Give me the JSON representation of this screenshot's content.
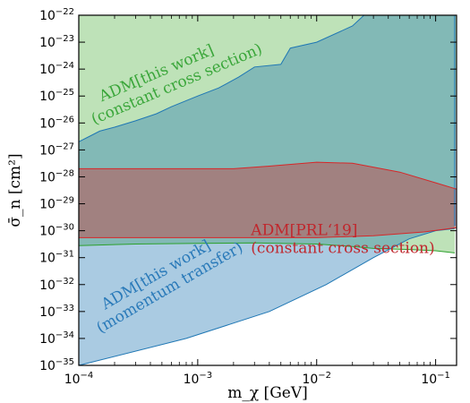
{
  "chart_data": {
    "type": "area",
    "xscale": "log",
    "yscale": "log",
    "xlim": [
      0.0001,
      0.15
    ],
    "ylim": [
      1e-35,
      1e-22
    ],
    "xlabel": "m_χ [GeV]",
    "ylabel": "σ̄_n [cm²]",
    "xticks": [
      {
        "value": 0.0001,
        "base": "10",
        "exp": "−4"
      },
      {
        "value": 0.001,
        "base": "10",
        "exp": "−3"
      },
      {
        "value": 0.01,
        "base": "10",
        "exp": "−2"
      },
      {
        "value": 0.1,
        "base": "10",
        "exp": "−1"
      }
    ],
    "yticks": [
      {
        "value": 1e-35,
        "base": "10",
        "exp": "−35"
      },
      {
        "value": 1e-34,
        "base": "10",
        "exp": "−34"
      },
      {
        "value": 1e-33,
        "base": "10",
        "exp": "−33"
      },
      {
        "value": 1e-32,
        "base": "10",
        "exp": "−32"
      },
      {
        "value": 1e-31,
        "base": "10",
        "exp": "−31"
      },
      {
        "value": 1e-30,
        "base": "10",
        "exp": "−30"
      },
      {
        "value": 1e-29,
        "base": "10",
        "exp": "−29"
      },
      {
        "value": 1e-28,
        "base": "10",
        "exp": "−28"
      },
      {
        "value": 1e-27,
        "base": "10",
        "exp": "−27"
      },
      {
        "value": 1e-26,
        "base": "10",
        "exp": "−26"
      },
      {
        "value": 1e-25,
        "base": "10",
        "exp": "−25"
      },
      {
        "value": 1e-24,
        "base": "10",
        "exp": "−24"
      },
      {
        "value": 1e-23,
        "base": "10",
        "exp": "−23"
      },
      {
        "value": 1e-22,
        "base": "10",
        "exp": "−22"
      }
    ],
    "series": [
      {
        "key": "green",
        "color": "#2ca02c",
        "fill": "#a8d8a0",
        "fill_opacity": 0.75,
        "upper": [
          [
            0.0001,
            1e-22
          ],
          [
            0.15,
            1e-22
          ]
        ],
        "lower": [
          [
            0.0001,
            2.8e-31
          ],
          [
            0.0003,
            3.2e-31
          ],
          [
            0.001,
            3.4e-31
          ],
          [
            0.003,
            3.5e-31
          ],
          [
            0.01,
            3.2e-31
          ],
          [
            0.02,
            2.6e-31
          ],
          [
            0.03,
            2.2e-31
          ],
          [
            0.06,
            2e-31
          ],
          [
            0.1,
            1.8e-31
          ],
          [
            0.145,
            1.5e-31
          ]
        ]
      },
      {
        "key": "blue",
        "color": "#1f77b4",
        "fill": "#1f77b4",
        "fill_opacity": 0.38,
        "upper": [
          [
            0.0001,
            2e-27
          ],
          [
            0.00012,
            3e-27
          ],
          [
            0.00015,
            5e-27
          ],
          [
            0.0002,
            7e-27
          ],
          [
            0.0003,
            1.2e-26
          ],
          [
            0.00045,
            2.2e-26
          ],
          [
            0.0006,
            4e-26
          ],
          [
            0.001,
            1e-25
          ],
          [
            0.0015,
            2e-25
          ],
          [
            0.0022,
            5e-25
          ],
          [
            0.003,
            1.2e-24
          ],
          [
            0.005,
            1.5e-24
          ],
          [
            0.006,
            6e-24
          ],
          [
            0.01,
            1e-23
          ],
          [
            0.02,
            4e-23
          ],
          [
            0.025,
            1e-22
          ],
          [
            0.145,
            1e-22
          ]
        ],
        "lower": [
          [
            0.0001,
            1e-35
          ],
          [
            0.0008,
            1e-34
          ],
          [
            0.004,
            1e-33
          ],
          [
            0.012,
            1e-32
          ],
          [
            0.03,
            1e-31
          ],
          [
            0.06,
            5e-31
          ],
          [
            0.1,
            1e-30
          ],
          [
            0.145,
            1.2e-30
          ]
        ],
        "right_edge": [
          [
            0.145,
            1e-22
          ],
          [
            0.145,
            1.5e-30
          ]
        ]
      },
      {
        "key": "red",
        "color": "#d62728",
        "fill": "#d62728",
        "fill_opacity": 0.38,
        "upper": [
          [
            0.0001,
            2e-28
          ],
          [
            0.002,
            2e-28
          ],
          [
            0.004,
            2.5e-28
          ],
          [
            0.01,
            3.5e-28
          ],
          [
            0.02,
            3.2e-28
          ],
          [
            0.05,
            1.5e-28
          ],
          [
            0.1,
            6e-29
          ],
          [
            0.15,
            3.5e-29
          ]
        ],
        "lower": [
          [
            0.0001,
            5.5e-31
          ],
          [
            0.01,
            5.5e-31
          ],
          [
            0.03,
            6.5e-31
          ],
          [
            0.08,
            9e-31
          ],
          [
            0.15,
            1.3e-30
          ]
        ]
      }
    ],
    "annotations": [
      {
        "key": "green",
        "lines": [
          "ADM[this work]",
          "(constant cross section)"
        ],
        "color": "#3aa63a",
        "at": [
          0.00011,
          3.2e-26
        ],
        "angle": -23
      },
      {
        "key": "red",
        "lines": [
          "ADM[PRL‘19]",
          "(constant cross section)"
        ],
        "color": "#c0272d",
        "at": [
          0.0028,
          7e-31
        ],
        "angle": 0
      },
      {
        "key": "blue",
        "lines": [
          "ADM[this work]",
          "(momentum transfer)"
        ],
        "color": "#2a7ab9",
        "at": [
          0.00012,
          5e-34
        ],
        "angle": -30
      }
    ]
  }
}
